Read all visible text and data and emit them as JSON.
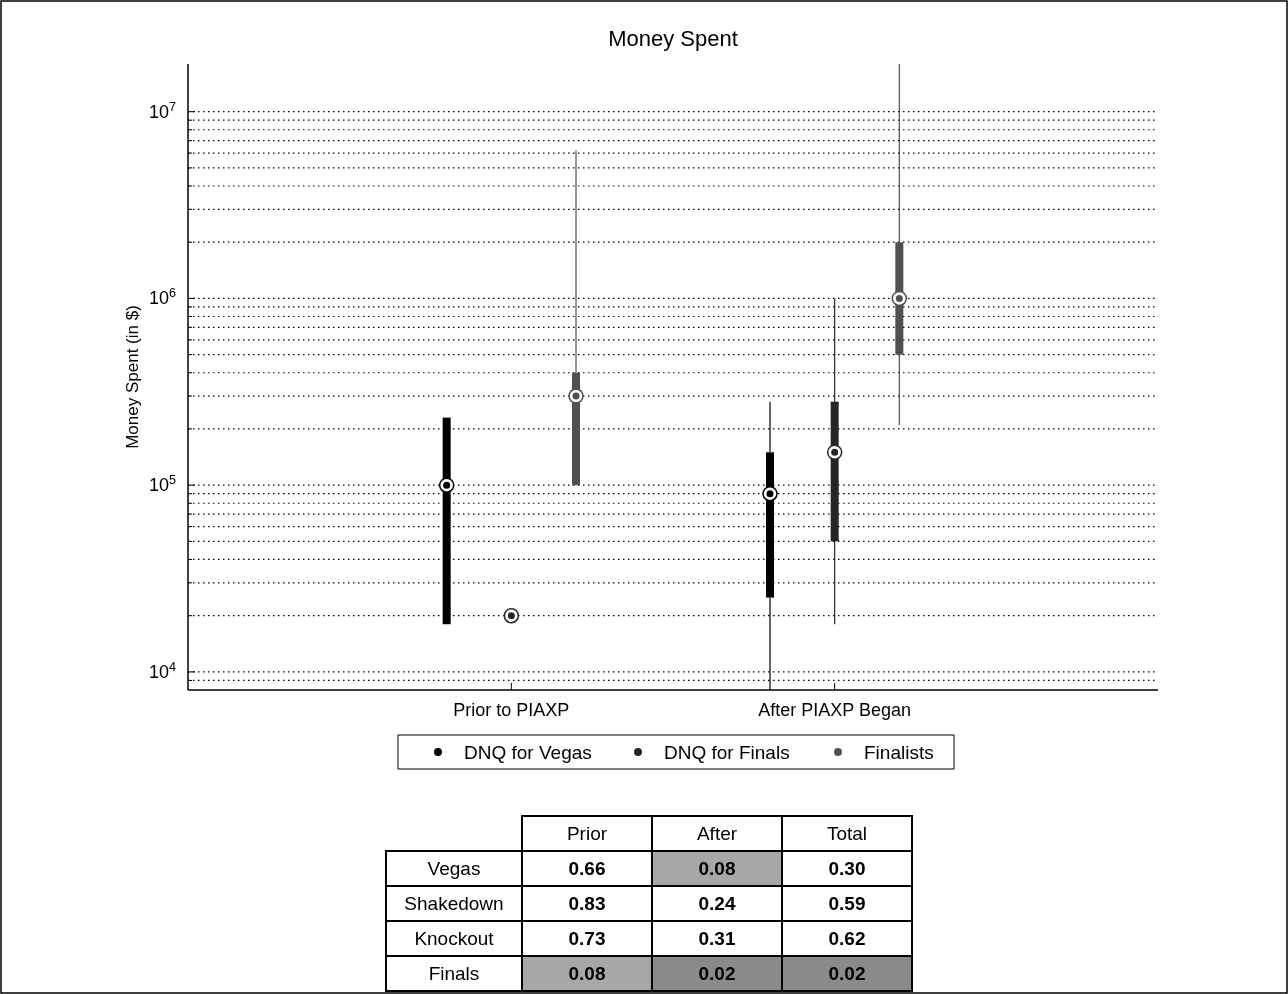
{
  "chart_data": [
    {
      "type": "box",
      "title": "Money Spent",
      "ylabel": "Money Spent (in $)",
      "categories": [
        "Prior to PIAXP",
        "After PIAXP Began"
      ],
      "log": true,
      "grid": "y",
      "line_style": "dotted",
      "legend": "bottom",
      "marker": "circle",
      "ylim": [
        8000,
        18000000
      ],
      "yticks": [
        {
          "value": 9000,
          "label": null
        },
        {
          "value": 10000,
          "label": "10$^{4}$"
        },
        {
          "value": 20000,
          "label": null
        },
        {
          "value": 30000,
          "label": null
        },
        {
          "value": 40000,
          "label": null
        },
        {
          "value": 50000,
          "label": null
        },
        {
          "value": 60000,
          "label": null
        },
        {
          "value": 70000,
          "label": null
        },
        {
          "value": 80000,
          "label": null
        },
        {
          "value": 90000,
          "label": null
        },
        {
          "value": 100000,
          "label": "10$^{5}$"
        },
        {
          "value": 200000,
          "label": null
        },
        {
          "value": 300000,
          "label": null
        },
        {
          "value": 400000,
          "label": null
        },
        {
          "value": 500000,
          "label": null
        },
        {
          "value": 600000,
          "label": null
        },
        {
          "value": 700000,
          "label": null
        },
        {
          "value": 800000,
          "label": null
        },
        {
          "value": 900000,
          "label": null
        },
        {
          "value": 1000000,
          "label": "10$^{6}$"
        },
        {
          "value": 2000000,
          "label": null
        },
        {
          "value": 3000000,
          "label": null
        },
        {
          "value": 4000000,
          "label": null
        },
        {
          "value": 5000000,
          "label": null
        },
        {
          "value": 6000000,
          "label": null
        },
        {
          "value": 7000000,
          "label": null
        },
        {
          "value": 8000000,
          "label": null
        },
        {
          "value": 9000000,
          "label": null
        },
        {
          "value": 10000000,
          "label": "10$^{7}$"
        }
      ],
      "series": [
        {
          "name": "DNQ for Vegas",
          "color": "#000000",
          "boxes": [
            {
              "low": 18000,
              "q1": 18000,
              "median": 100000,
              "q3": 230000,
              "high": 230000
            },
            {
              "low": 8000,
              "q1": 25000,
              "median": 90000,
              "q3": 150000,
              "high": 280000
            }
          ]
        },
        {
          "name": "DNQ for Finals",
          "color": "#262626",
          "boxes": [
            null,
            {
              "low": 18000,
              "q1": 50000,
              "median": 150000,
              "q3": 280000,
              "high": 1000000
            }
          ]
        },
        {
          "type": "scatter",
          "color": "#262626",
          "x": [
            "Prior to PIAXP"
          ],
          "values": [
            20000
          ]
        },
        {
          "name": "Finalists",
          "color": "#505050",
          "boxes": [
            {
              "low": 100000,
              "q1": 100000,
              "median": 300000,
              "q3": 400000,
              "high": 6200000
            },
            {
              "low": 210000,
              "q1": 500000,
              "median": 1000000,
              "q3": 2000000,
              "high": 18000000
            }
          ]
        }
      ]
    },
    {
      "type": "heatmap",
      "categories": [
        "Prior",
        "After",
        "Total"
      ],
      "y_categories": [
        "Vegas",
        "Shakedown",
        "Knockout",
        "Finals"
      ],
      "cells": [
        [
          0.66,
          0.08,
          0.3
        ],
        [
          0.83,
          0.24,
          0.59
        ],
        [
          0.73,
          0.31,
          0.62
        ],
        [
          0.08,
          0.02,
          0.02
        ]
      ],
      "cell_labels": [
        [
          "0.66",
          "0.08",
          "0.30"
        ],
        [
          "0.83",
          "0.24",
          "0.59"
        ],
        [
          "0.73",
          "0.31",
          "0.62"
        ],
        [
          "0.08",
          "0.02",
          "0.02"
        ]
      ]
    }
  ]
}
